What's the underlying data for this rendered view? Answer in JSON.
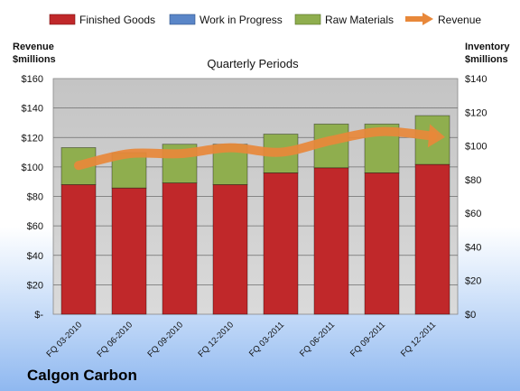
{
  "chart_data": {
    "type": "bar",
    "title": "Quarterly Periods",
    "company": "Calgon Carbon",
    "categories": [
      "FQ 03-2010",
      "FQ 06-2010",
      "FQ 09-2010",
      "FQ 12-2010",
      "FQ 03-2011",
      "FQ 06-2011",
      "FQ 09-2011",
      "FQ 12-2011"
    ],
    "series": [
      {
        "name": "Finished Goods",
        "axis": "right",
        "stacked": true,
        "color": "#c0282a",
        "values": [
          77,
          75,
          78,
          77,
          84,
          87,
          84,
          89
        ]
      },
      {
        "name": "Work in Progress",
        "axis": "right",
        "stacked": true,
        "color": "#5a86c8",
        "values": [
          0,
          0,
          0,
          0,
          0,
          0,
          0,
          0
        ]
      },
      {
        "name": "Raw Materials",
        "axis": "right",
        "stacked": true,
        "color": "#8fae4e",
        "values": [
          22,
          21,
          23,
          24,
          23,
          26,
          29,
          29
        ]
      },
      {
        "name": "Revenue",
        "axis": "left",
        "type": "line",
        "color": "#e8883a",
        "values": [
          101,
          109,
          109,
          113,
          110,
          118,
          124,
          121
        ]
      }
    ],
    "left_axis": {
      "label_line1": "Revenue",
      "label_line2": "$millions",
      "ylim": [
        0,
        160
      ],
      "ticks": [
        0,
        20,
        40,
        60,
        80,
        100,
        120,
        140,
        160
      ],
      "tick_labels": [
        "$-",
        "$20",
        "$40",
        "$60",
        "$80",
        "$100",
        "$120",
        "$140",
        "$160"
      ]
    },
    "right_axis": {
      "label_line1": "Inventory",
      "label_line2": "$millions",
      "ylim": [
        0,
        140
      ],
      "ticks": [
        0,
        20,
        40,
        60,
        80,
        100,
        120,
        140
      ],
      "tick_labels": [
        "$0",
        "$20",
        "$40",
        "$60",
        "$80",
        "$100",
        "$120",
        "$140"
      ]
    },
    "legend_position": "top",
    "grid": true
  }
}
